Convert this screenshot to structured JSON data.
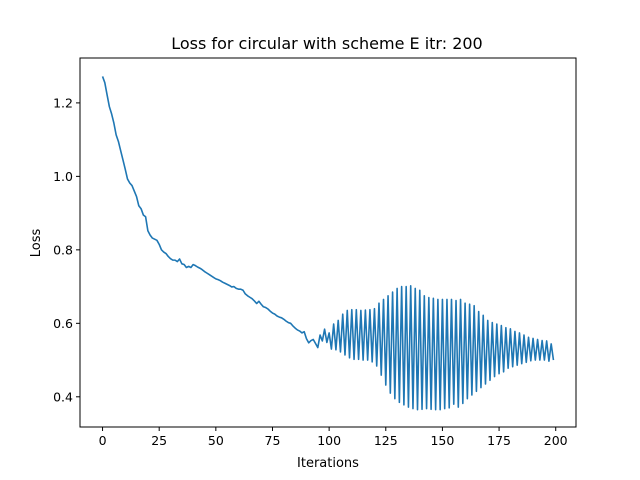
{
  "chart_data": {
    "type": "line",
    "title": "Loss for circular with scheme E itr: 200",
    "xlabel": "Iterations",
    "ylabel": "Loss",
    "xlim": [
      -9.95,
      208.95
    ],
    "ylim": [
      0.3178,
      1.3222
    ],
    "xticks": [
      0,
      25,
      50,
      75,
      100,
      125,
      150,
      175,
      200
    ],
    "xtick_labels": [
      "0",
      "25",
      "50",
      "75",
      "100",
      "125",
      "150",
      "175",
      "200"
    ],
    "yticks": [
      0.4,
      0.6,
      0.8,
      1.0,
      1.2
    ],
    "ytick_labels": [
      "0.4",
      "0.6",
      "0.8",
      "1.0",
      "1.2"
    ],
    "grid": false,
    "legend": "none",
    "series": [
      {
        "color": "#1f77b4",
        "x": [
          0,
          1,
          2,
          3,
          4,
          5,
          6,
          7,
          8,
          9,
          10,
          11,
          12,
          13,
          14,
          15,
          16,
          17,
          18,
          19,
          20,
          21,
          22,
          23,
          24,
          25,
          26,
          27,
          28,
          29,
          30,
          31,
          32,
          33,
          34,
          35,
          36,
          37,
          38,
          39,
          40,
          41,
          42,
          43,
          44,
          45,
          46,
          47,
          48,
          49,
          50,
          51,
          52,
          53,
          54,
          55,
          56,
          57,
          58,
          59,
          60,
          61,
          62,
          63,
          64,
          65,
          66,
          67,
          68,
          69,
          70,
          71,
          72,
          73,
          74,
          75,
          76,
          77,
          78,
          79,
          80,
          81,
          82,
          83,
          84,
          85,
          86,
          87,
          88,
          89,
          90,
          91,
          92,
          93,
          94,
          95,
          96,
          97,
          98,
          99,
          100,
          101,
          102,
          103,
          104,
          105,
          106,
          107,
          108,
          109,
          110,
          111,
          112,
          113,
          114,
          115,
          116,
          117,
          118,
          119,
          120,
          121,
          122,
          123,
          124,
          125,
          126,
          127,
          128,
          129,
          130,
          131,
          132,
          133,
          134,
          135,
          136,
          137,
          138,
          139,
          140,
          141,
          142,
          143,
          144,
          145,
          146,
          147,
          148,
          149,
          150,
          151,
          152,
          153,
          154,
          155,
          156,
          157,
          158,
          159,
          160,
          161,
          162,
          163,
          164,
          165,
          166,
          167,
          168,
          169,
          170,
          171,
          172,
          173,
          174,
          175,
          176,
          177,
          178,
          179,
          180,
          181,
          182,
          183,
          184,
          185,
          186,
          187,
          188,
          189,
          190,
          191,
          192,
          193,
          194,
          195,
          196,
          197,
          198,
          199
        ],
        "y": [
          1.272,
          1.255,
          1.222,
          1.19,
          1.17,
          1.145,
          1.113,
          1.095,
          1.07,
          1.045,
          1.02,
          0.993,
          0.982,
          0.975,
          0.96,
          0.945,
          0.92,
          0.912,
          0.895,
          0.89,
          0.852,
          0.84,
          0.832,
          0.829,
          0.826,
          0.815,
          0.8,
          0.794,
          0.79,
          0.782,
          0.776,
          0.772,
          0.772,
          0.768,
          0.775,
          0.762,
          0.76,
          0.752,
          0.755,
          0.752,
          0.76,
          0.757,
          0.753,
          0.75,
          0.746,
          0.741,
          0.737,
          0.733,
          0.729,
          0.725,
          0.721,
          0.719,
          0.716,
          0.712,
          0.709,
          0.706,
          0.703,
          0.699,
          0.7,
          0.695,
          0.693,
          0.693,
          0.69,
          0.68,
          0.675,
          0.671,
          0.667,
          0.661,
          0.654,
          0.66,
          0.652,
          0.645,
          0.643,
          0.639,
          0.633,
          0.628,
          0.625,
          0.62,
          0.617,
          0.615,
          0.611,
          0.606,
          0.602,
          0.6,
          0.593,
          0.587,
          0.582,
          0.579,
          0.574,
          0.577,
          0.558,
          0.547,
          0.553,
          0.556,
          0.545,
          0.534,
          0.568,
          0.552,
          0.584,
          0.548,
          0.574,
          0.53,
          0.598,
          0.528,
          0.608,
          0.522,
          0.625,
          0.514,
          0.635,
          0.506,
          0.637,
          0.502,
          0.637,
          0.502,
          0.635,
          0.5,
          0.636,
          0.5,
          0.637,
          0.495,
          0.64,
          0.484,
          0.655,
          0.459,
          0.665,
          0.432,
          0.675,
          0.41,
          0.685,
          0.395,
          0.695,
          0.385,
          0.7,
          0.378,
          0.7,
          0.372,
          0.702,
          0.368,
          0.695,
          0.365,
          0.69,
          0.366,
          0.675,
          0.368,
          0.67,
          0.366,
          0.668,
          0.365,
          0.665,
          0.365,
          0.665,
          0.368,
          0.665,
          0.37,
          0.665,
          0.38,
          0.662,
          0.372,
          0.665,
          0.382,
          0.655,
          0.395,
          0.652,
          0.405,
          0.648,
          0.415,
          0.632,
          0.425,
          0.622,
          0.435,
          0.608,
          0.445,
          0.602,
          0.455,
          0.598,
          0.463,
          0.594,
          0.468,
          0.588,
          0.478,
          0.585,
          0.482,
          0.578,
          0.486,
          0.574,
          0.49,
          0.568,
          0.494,
          0.562,
          0.498,
          0.559,
          0.5,
          0.556,
          0.5,
          0.553,
          0.5,
          0.552,
          0.497,
          0.544,
          0.5
        ]
      }
    ]
  }
}
